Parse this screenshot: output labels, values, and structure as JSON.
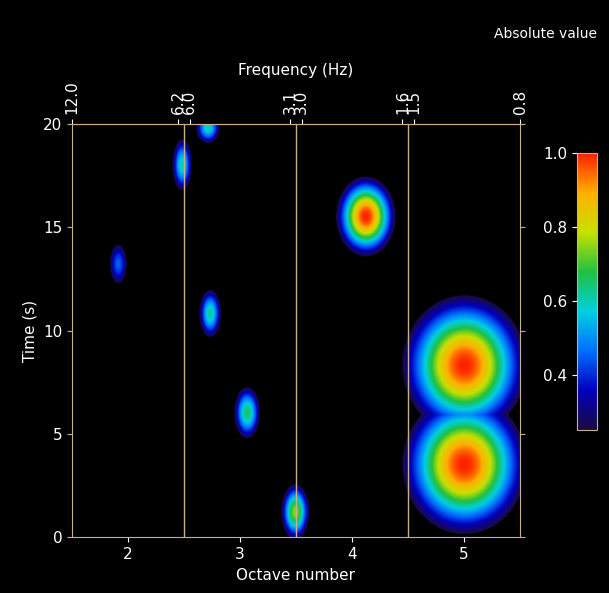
{
  "chart_data": {
    "type": "heatmap",
    "x_label": "Octave number",
    "y_label": "Time (s)",
    "top_label": "Frequency (Hz)",
    "xlim": [
      1.5,
      5.5
    ],
    "xticks": [
      2,
      3,
      4,
      5
    ],
    "ylim": [
      0,
      20
    ],
    "yticks": [
      0,
      5,
      10,
      15,
      20
    ],
    "top_ticks": [
      {
        "value": 1.5,
        "label": "12.0"
      },
      {
        "value": 2.45,
        "label": "6.2"
      },
      {
        "value": 2.55,
        "label": "6.0"
      },
      {
        "value": 3.45,
        "label": "3.1"
      },
      {
        "value": 3.55,
        "label": "3.0"
      },
      {
        "value": 4.45,
        "label": "1.6"
      },
      {
        "value": 4.55,
        "label": "1.5"
      },
      {
        "value": 5.5,
        "label": "0.8"
      }
    ],
    "boundaries": [
      2.5,
      3.5,
      4.5
    ],
    "blobs": [
      {
        "octave": 1.91,
        "time": 13.2,
        "value": 0.45,
        "octave_width": 0.16,
        "time_width": 2.0
      },
      {
        "octave": 2.48,
        "time": 18.0,
        "value": 0.6,
        "octave_width": 0.18,
        "time_width": 2.6
      },
      {
        "octave": 2.71,
        "time": 19.8,
        "value": 0.6,
        "octave_width": 0.22,
        "time_width": 1.6
      },
      {
        "octave": 2.73,
        "time": 10.8,
        "value": 0.62,
        "octave_width": 0.2,
        "time_width": 2.4
      },
      {
        "octave": 3.06,
        "time": 6.0,
        "value": 0.65,
        "octave_width": 0.24,
        "time_width": 2.6
      },
      {
        "octave": 3.49,
        "time": 1.2,
        "value": 0.75,
        "octave_width": 0.26,
        "time_width": 2.8
      },
      {
        "octave": 4.12,
        "time": 15.5,
        "value": 1.0,
        "octave_width": 0.55,
        "time_width": 4.0
      },
      {
        "octave": 5.0,
        "time": 8.3,
        "value": 1.0,
        "octave_width": 1.15,
        "time_width": 7.0
      },
      {
        "octave": 5.0,
        "time": 3.5,
        "value": 1.0,
        "octave_width": 1.15,
        "time_width": 7.0
      }
    ],
    "colorbar": {
      "label": "Absolute value",
      "range": [
        0.25,
        1.0
      ],
      "ticks": [
        0.4,
        0.6,
        0.8,
        {
          "value": 1.0,
          "label": "1.0"
        }
      ]
    }
  }
}
